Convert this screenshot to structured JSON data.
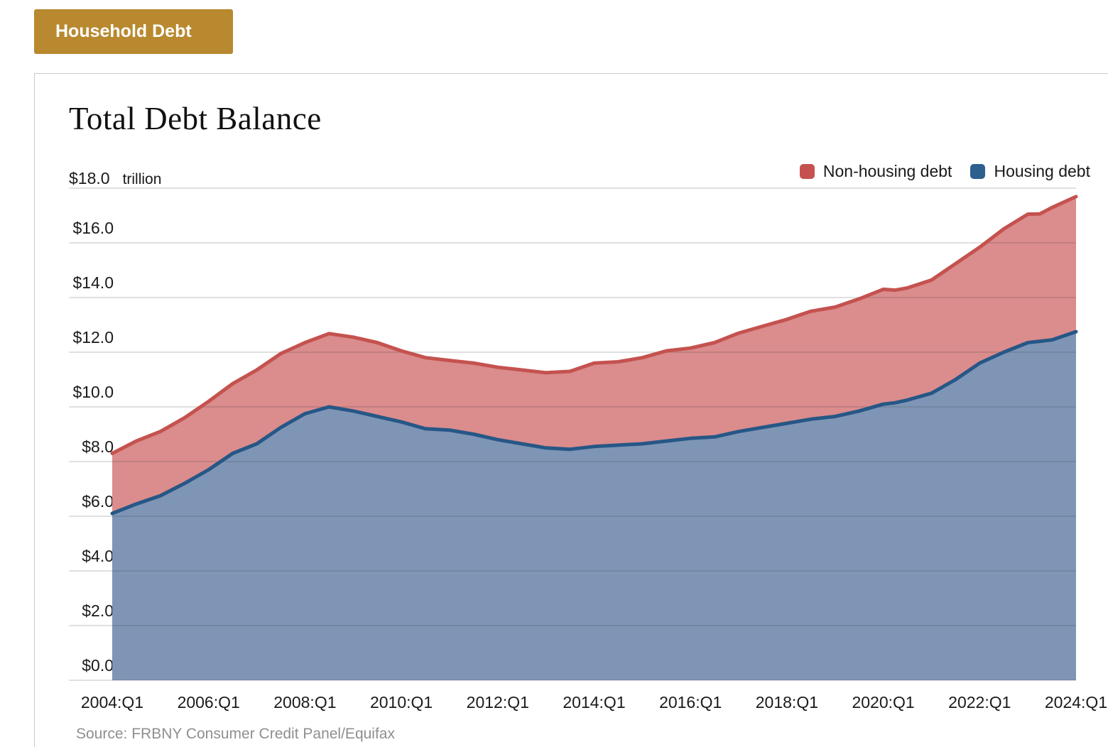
{
  "tab": {
    "label": "Household Debt",
    "color": "#B8892F"
  },
  "chart": {
    "title": "Total Debt Balance",
    "unit_label": "trillion",
    "y_max_label": "$18.0",
    "legend": [
      {
        "label": "Non-housing debt",
        "color": "#C5524F"
      },
      {
        "label": "Housing debt",
        "color": "#2D5F8F"
      }
    ],
    "source": "Source: FRBNY Consumer Credit Panel/Equifax"
  },
  "chart_data": {
    "type": "area",
    "stacked": true,
    "title": "Total Debt Balance",
    "ylabel": "$ trillion",
    "ylim": [
      0,
      18
    ],
    "ytick_step": 2,
    "ytick_labels": [
      "$0.0",
      "$2.0",
      "$4.0",
      "$6.0",
      "$8.0",
      "$10.0",
      "$12.0",
      "$14.0",
      "$16.0",
      "$18.0"
    ],
    "xtick_labels": [
      "2004:Q1",
      "2006:Q1",
      "2008:Q1",
      "2010:Q1",
      "2012:Q1",
      "2014:Q1",
      "2016:Q1",
      "2018:Q1",
      "2020:Q1",
      "2022:Q1",
      "2024:Q1"
    ],
    "grid": "horizontal",
    "legend_position": "top-right",
    "x": [
      "2004:Q1",
      "2004:Q3",
      "2005:Q1",
      "2005:Q3",
      "2006:Q1",
      "2006:Q3",
      "2007:Q1",
      "2007:Q3",
      "2008:Q1",
      "2008:Q3",
      "2009:Q1",
      "2009:Q3",
      "2010:Q1",
      "2010:Q3",
      "2011:Q1",
      "2011:Q3",
      "2012:Q1",
      "2012:Q3",
      "2013:Q1",
      "2013:Q3",
      "2014:Q1",
      "2014:Q3",
      "2015:Q1",
      "2015:Q3",
      "2016:Q1",
      "2016:Q3",
      "2017:Q1",
      "2017:Q3",
      "2018:Q1",
      "2018:Q3",
      "2019:Q1",
      "2019:Q3",
      "2020:Q1",
      "2020:Q2",
      "2020:Q3",
      "2021:Q1",
      "2021:Q3",
      "2022:Q1",
      "2022:Q3",
      "2023:Q1",
      "2023:Q2",
      "2023:Q3",
      "2024:Q1"
    ],
    "series": [
      {
        "name": "Housing debt",
        "line_color": "#265786",
        "fill_color": "#7E95B5",
        "values": [
          6.1,
          6.45,
          6.75,
          7.2,
          7.7,
          8.3,
          8.65,
          9.25,
          9.75,
          10.0,
          9.85,
          9.65,
          9.45,
          9.2,
          9.15,
          9.0,
          8.8,
          8.65,
          8.5,
          8.45,
          8.55,
          8.6,
          8.65,
          8.75,
          8.85,
          8.9,
          9.1,
          9.25,
          9.4,
          9.55,
          9.65,
          9.85,
          10.1,
          10.15,
          10.25,
          10.5,
          11.0,
          11.6,
          12.0,
          12.35,
          12.4,
          12.45,
          12.75
        ]
      },
      {
        "name": "Non-housing debt",
        "line_color": "#C4524F",
        "fill_color": "#DB8C8C",
        "values": [
          2.2,
          2.3,
          2.35,
          2.4,
          2.5,
          2.55,
          2.7,
          2.7,
          2.6,
          2.68,
          2.7,
          2.7,
          2.6,
          2.6,
          2.55,
          2.6,
          2.65,
          2.7,
          2.75,
          2.85,
          3.05,
          3.05,
          3.15,
          3.3,
          3.3,
          3.45,
          3.6,
          3.7,
          3.8,
          3.95,
          4.0,
          4.1,
          4.2,
          4.12,
          4.1,
          4.14,
          4.24,
          4.24,
          4.51,
          4.7,
          4.66,
          4.84,
          4.94
        ]
      }
    ],
    "stacked_total": [
      8.3,
      8.75,
      9.1,
      9.6,
      10.2,
      10.85,
      11.35,
      11.95,
      12.35,
      12.68,
      12.55,
      12.35,
      12.05,
      11.8,
      11.7,
      11.6,
      11.45,
      11.35,
      11.25,
      11.3,
      11.6,
      11.65,
      11.8,
      12.05,
      12.15,
      12.35,
      12.7,
      12.95,
      13.2,
      13.5,
      13.65,
      13.95,
      14.3,
      14.27,
      14.35,
      14.64,
      15.24,
      15.84,
      16.51,
      17.05,
      17.06,
      17.29,
      17.69
    ]
  },
  "layout_note": "peak 2008:Q3 = 12.68, trough 2013 ≈ 11.2, end 2024:Q1 = 17.69 total / 12.75 housing"
}
